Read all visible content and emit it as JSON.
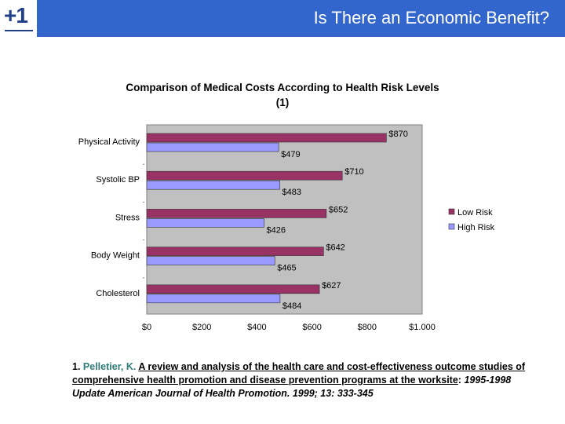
{
  "header": {
    "logo": "+1",
    "title": "Is There an Economic Benefit?"
  },
  "colors": {
    "header_bg": "#3366cc",
    "low_risk": "#993366",
    "high_risk": "#9999ff",
    "plot_bg": "#c0c0c0"
  },
  "chart_data": {
    "type": "bar",
    "orientation": "horizontal",
    "title": "Comparison of Medical Costs According to Health Risk Levels",
    "subtitle": "(1)",
    "categories": [
      "Physical Activity",
      "Systolic BP",
      "Stress",
      "Body Weight",
      "Cholesterol"
    ],
    "series": [
      {
        "name": "Low Risk",
        "values": [
          870,
          710,
          652,
          642,
          627
        ],
        "labels": [
          "$870",
          "$710",
          "$652",
          "$642",
          "$627"
        ]
      },
      {
        "name": "High Risk",
        "values": [
          479,
          483,
          426,
          465,
          484
        ],
        "labels": [
          "$479",
          "$483",
          "$426",
          "$465",
          "$484"
        ]
      }
    ],
    "xlim": [
      0,
      1000
    ],
    "xticks": [
      0,
      200,
      400,
      600,
      800,
      1000
    ],
    "xtick_labels": [
      "$0",
      "$200",
      "$400",
      "$600",
      "$800",
      "$1.000"
    ],
    "legend": [
      "Low Risk",
      "High Risk"
    ],
    "legend_position": "right",
    "grid": false
  },
  "reference": {
    "number": "1.",
    "author": "Pelletier, K.",
    "title": "A review and analysis of the health care and cost-effectiveness outcome studies of comprehensive health promotion and disease prevention programs at the worksite",
    "separator": ":",
    "journal": "1995-1998 Update American Journal of Health Promotion.",
    "citation": "1999; 13: 333-345"
  }
}
